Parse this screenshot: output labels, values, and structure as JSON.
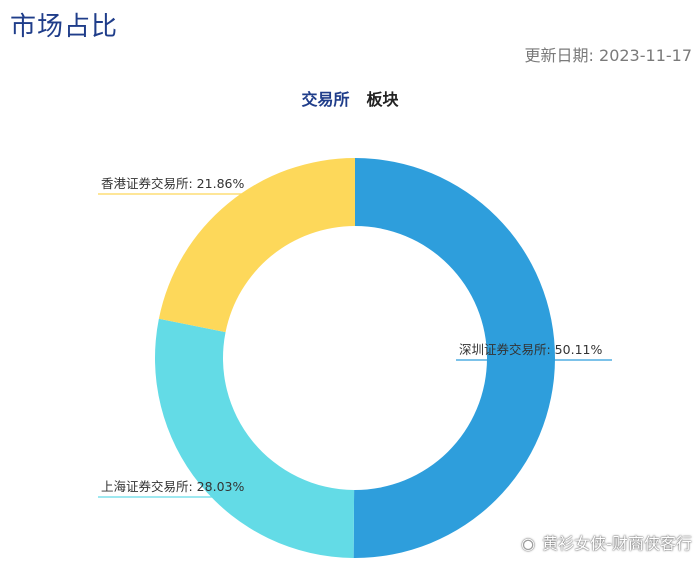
{
  "header": {
    "title": "市场占比",
    "update_label": "更新日期:",
    "update_date": "2023-11-17"
  },
  "tabs": [
    {
      "label": "交易所",
      "active": true
    },
    {
      "label": "板块",
      "active": false
    }
  ],
  "chart_data": {
    "type": "pie",
    "donut": true,
    "slices": [
      {
        "name": "深圳证券交易所",
        "value": 50.11,
        "label": "深圳证券交易所: 50.11%",
        "color": "#2e9edc"
      },
      {
        "name": "上海证券交易所",
        "value": 28.03,
        "label": "上海证券交易所: 28.03%",
        "color": "#63dbe6"
      },
      {
        "name": "香港证券交易所",
        "value": 21.86,
        "label": "香港证券交易所: 21.86%",
        "color": "#fdd85a"
      }
    ]
  },
  "watermark": {
    "icon": "weibo-icon",
    "text": "黄衫女侠-财商侠客行"
  }
}
